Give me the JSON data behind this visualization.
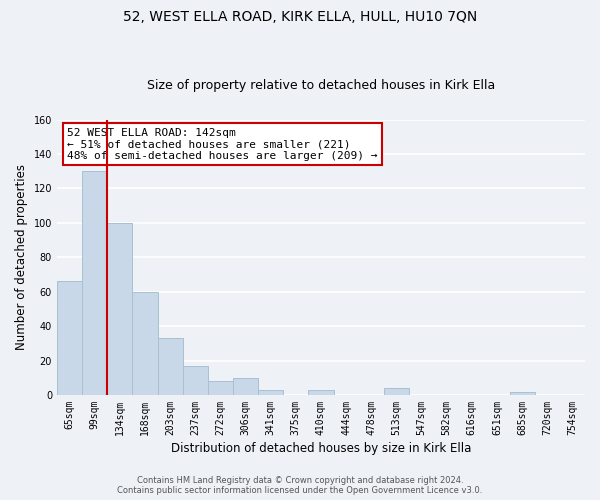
{
  "title": "52, WEST ELLA ROAD, KIRK ELLA, HULL, HU10 7QN",
  "subtitle": "Size of property relative to detached houses in Kirk Ella",
  "xlabel": "Distribution of detached houses by size in Kirk Ella",
  "ylabel": "Number of detached properties",
  "bar_labels": [
    "65sqm",
    "99sqm",
    "134sqm",
    "168sqm",
    "203sqm",
    "237sqm",
    "272sqm",
    "306sqm",
    "341sqm",
    "375sqm",
    "410sqm",
    "444sqm",
    "478sqm",
    "513sqm",
    "547sqm",
    "582sqm",
    "616sqm",
    "651sqm",
    "685sqm",
    "720sqm",
    "754sqm"
  ],
  "bar_values": [
    66,
    130,
    100,
    60,
    33,
    17,
    8,
    10,
    3,
    0,
    3,
    0,
    0,
    4,
    0,
    0,
    0,
    0,
    2,
    0,
    0
  ],
  "bar_color": "#c8d8e8",
  "bar_edge_color": "#a8c0d0",
  "ylim": [
    0,
    160
  ],
  "yticks": [
    0,
    20,
    40,
    60,
    80,
    100,
    120,
    140,
    160
  ],
  "property_line_color": "#cc0000",
  "annotation_text": "52 WEST ELLA ROAD: 142sqm\n← 51% of detached houses are smaller (221)\n48% of semi-detached houses are larger (209) →",
  "annotation_box_color": "#ffffff",
  "annotation_box_edge": "#cc0000",
  "footer_line1": "Contains HM Land Registry data © Crown copyright and database right 2024.",
  "footer_line2": "Contains public sector information licensed under the Open Government Licence v3.0.",
  "background_color": "#eef2f7",
  "grid_color": "#ffffff",
  "title_fontsize": 10,
  "subtitle_fontsize": 9,
  "tick_fontsize": 7,
  "ylabel_fontsize": 8.5,
  "annotation_fontsize": 8,
  "footer_fontsize": 6
}
